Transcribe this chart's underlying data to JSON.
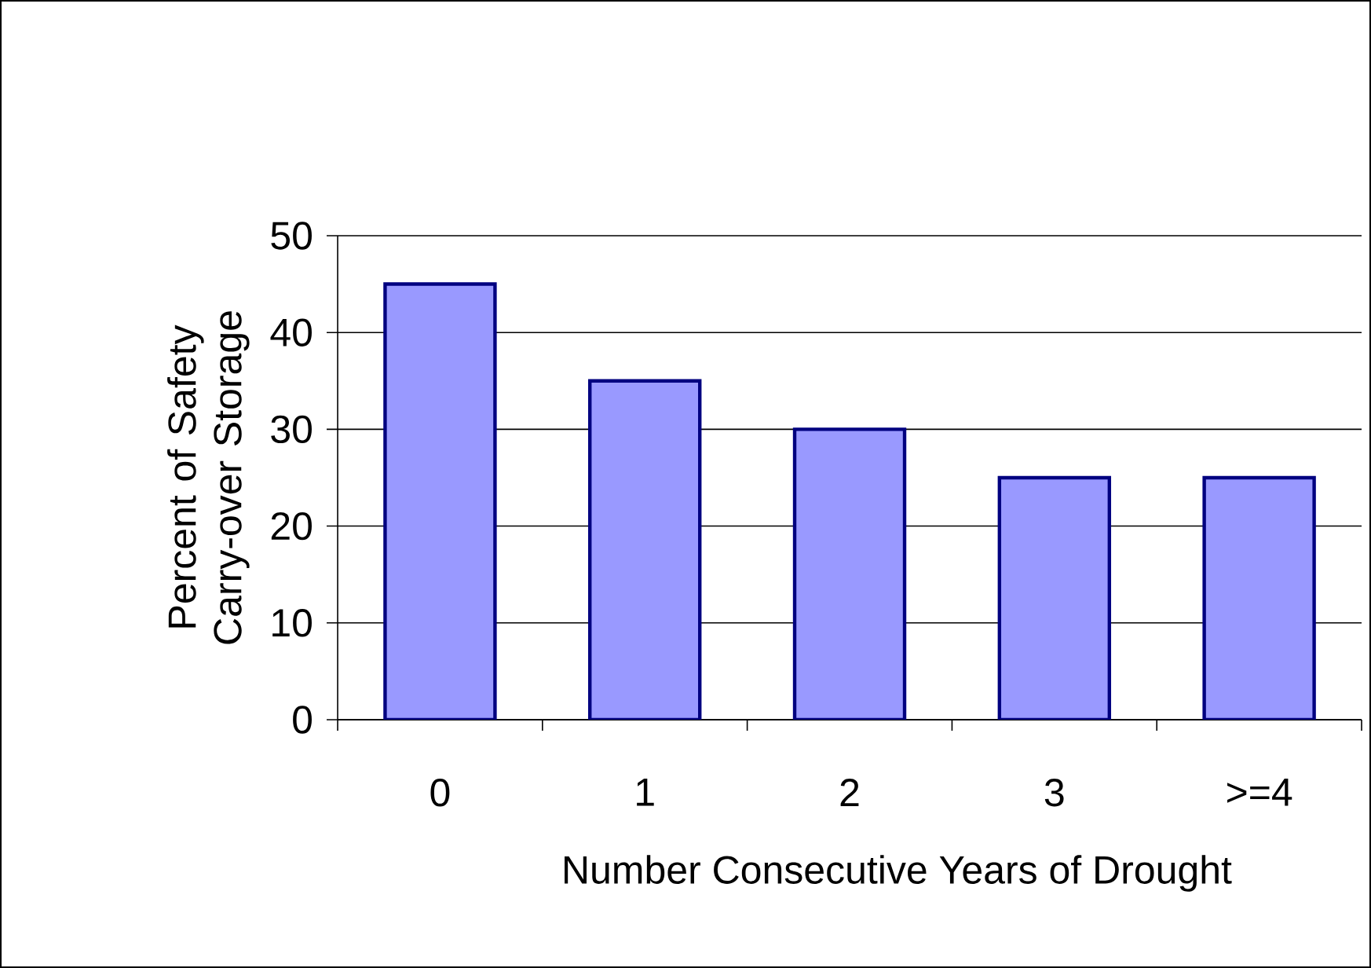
{
  "chart_data": {
    "type": "bar",
    "xlabel": "Number Consecutive Years of Drought",
    "ylabel": "Percent of Safety Carry-over Storage",
    "categories": [
      "0",
      "1",
      "2",
      "3",
      ">=4"
    ],
    "values": [
      45,
      35,
      30,
      25,
      25
    ],
    "color": "#9999ff",
    "ylim": [
      0,
      50
    ],
    "yticks": [
      0,
      10,
      20,
      30,
      40,
      50
    ],
    "grid": "y"
  }
}
